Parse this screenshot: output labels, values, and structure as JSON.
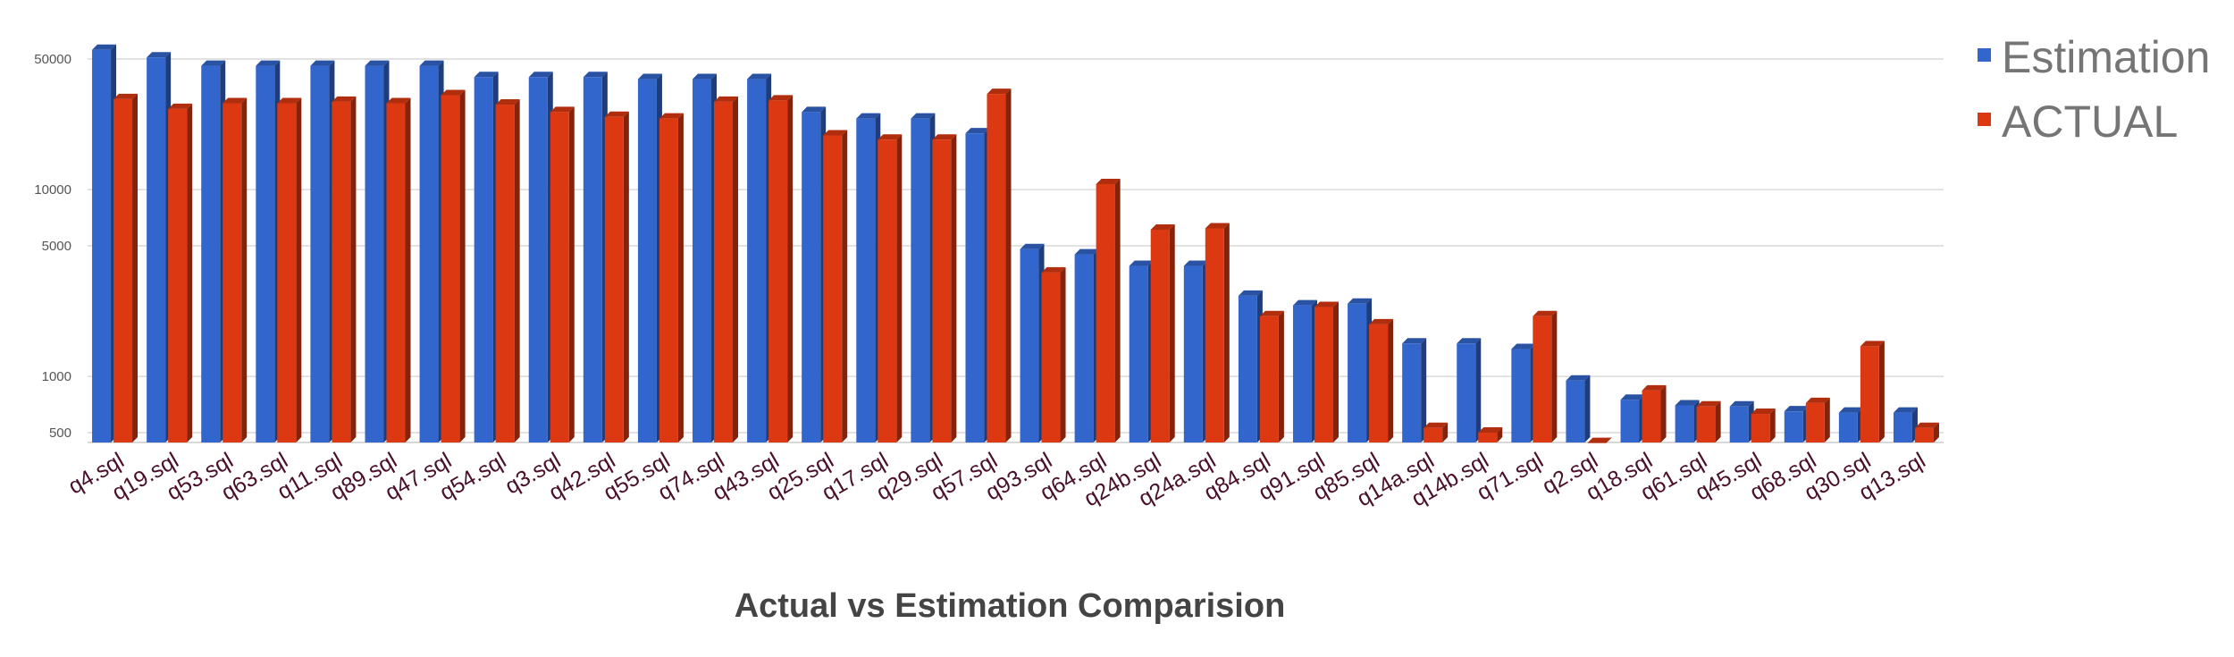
{
  "chart_data": {
    "type": "bar",
    "title": "Actual vs Estimation Comparision",
    "xlabel": "",
    "ylabel": "",
    "y_scale": "log",
    "ylim": [
      400,
      70000
    ],
    "y_ticks": [
      500,
      1000,
      5000,
      10000,
      50000
    ],
    "grid": true,
    "legend_position": "top-right",
    "categories": [
      "q4.sql",
      "q19.sql",
      "q53.sql",
      "q63.sql",
      "q11.sql",
      "q89.sql",
      "q47.sql",
      "q54.sql",
      "q3.sql",
      "q42.sql",
      "q55.sql",
      "q74.sql",
      "q43.sql",
      "q25.sql",
      "q17.sql",
      "q29.sql",
      "q57.sql",
      "q93.sql",
      "q64.sql",
      "q24b.sql",
      "q24a.sql",
      "q84.sql",
      "q91.sql",
      "q85.sql",
      "q14a.sql",
      "q14b.sql",
      "q71.sql",
      "q2.sql",
      "q18.sql",
      "q61.sql",
      "q45.sql",
      "q68.sql",
      "q30.sql",
      "q13.sql"
    ],
    "series": [
      {
        "name": "Estimation",
        "color": "#3366cc",
        "values": [
          56000,
          51000,
          46000,
          46000,
          46000,
          46000,
          46000,
          40000,
          40000,
          40000,
          39000,
          39000,
          39000,
          26000,
          24000,
          24000,
          20000,
          4800,
          4500,
          3900,
          3900,
          2700,
          2400,
          2450,
          1500,
          1500,
          1400,
          950,
          750,
          700,
          690,
          650,
          640,
          640
        ]
      },
      {
        "name": "ACTUAL",
        "color": "#dc3912",
        "values": [
          30500,
          27000,
          29000,
          29000,
          29500,
          29000,
          32000,
          28500,
          26000,
          24500,
          24000,
          29500,
          30000,
          19500,
          18500,
          18500,
          32500,
          3600,
          10700,
          6100,
          6200,
          2100,
          2350,
          1900,
          530,
          500,
          2100,
          440,
          840,
          690,
          630,
          720,
          1450,
          530
        ]
      }
    ]
  }
}
